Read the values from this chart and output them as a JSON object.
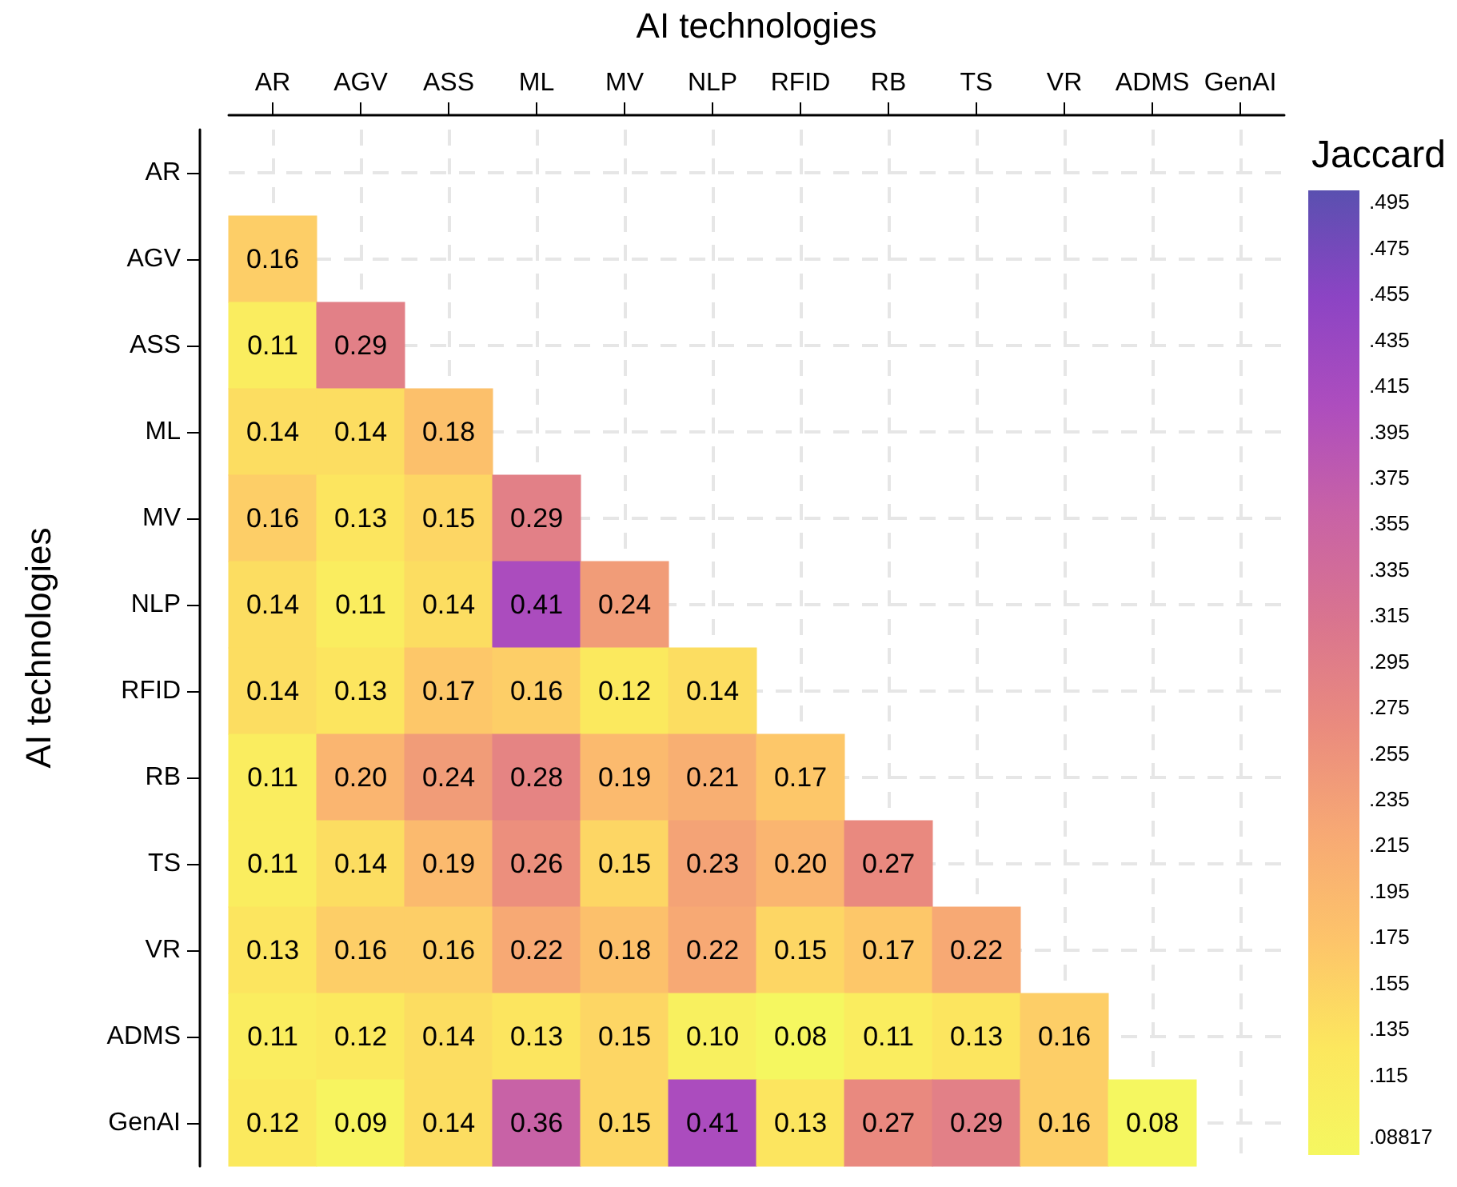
{
  "chart_data": {
    "type": "heatmap",
    "xlabel": "AI technologies",
    "ylabel": "AI technologies",
    "clabel": "Jaccard",
    "categories": [
      "AR",
      "AGV",
      "ASS",
      "ML",
      "MV",
      "NLP",
      "RFID",
      "RB",
      "TS",
      "VR",
      "ADMS",
      "GenAI"
    ],
    "y_categories": [
      "AR",
      "AGV",
      "ASS",
      "ML",
      "MV",
      "NLP",
      "RFID",
      "RB",
      "TS",
      "VR",
      "ADMS",
      "GenAI"
    ],
    "cells": [
      [
        null,
        null,
        null,
        null,
        null,
        null,
        null,
        null,
        null,
        null,
        null,
        null
      ],
      [
        0.16,
        null,
        null,
        null,
        null,
        null,
        null,
        null,
        null,
        null,
        null,
        null
      ],
      [
        0.11,
        0.29,
        null,
        null,
        null,
        null,
        null,
        null,
        null,
        null,
        null,
        null
      ],
      [
        0.14,
        0.14,
        0.18,
        null,
        null,
        null,
        null,
        null,
        null,
        null,
        null,
        null
      ],
      [
        0.16,
        0.13,
        0.15,
        0.29,
        null,
        null,
        null,
        null,
        null,
        null,
        null,
        null
      ],
      [
        0.14,
        0.11,
        0.14,
        0.41,
        0.24,
        null,
        null,
        null,
        null,
        null,
        null,
        null
      ],
      [
        0.14,
        0.13,
        0.17,
        0.16,
        0.12,
        0.14,
        null,
        null,
        null,
        null,
        null,
        null
      ],
      [
        0.11,
        0.2,
        0.24,
        0.28,
        0.19,
        0.21,
        0.17,
        null,
        null,
        null,
        null,
        null
      ],
      [
        0.11,
        0.14,
        0.19,
        0.26,
        0.15,
        0.23,
        0.2,
        0.27,
        null,
        null,
        null,
        null
      ],
      [
        0.13,
        0.16,
        0.16,
        0.22,
        0.18,
        0.22,
        0.15,
        0.17,
        0.22,
        null,
        null,
        null
      ],
      [
        0.11,
        0.12,
        0.14,
        0.13,
        0.15,
        0.1,
        0.08,
        0.11,
        0.13,
        0.16,
        null,
        null
      ],
      [
        0.12,
        0.09,
        0.14,
        0.36,
        0.15,
        0.41,
        0.13,
        0.27,
        0.29,
        0.16,
        0.08,
        null
      ]
    ],
    "cell_labels": [
      [
        null,
        null,
        null,
        null,
        null,
        null,
        null,
        null,
        null,
        null,
        null,
        null
      ],
      [
        "0.16",
        null,
        null,
        null,
        null,
        null,
        null,
        null,
        null,
        null,
        null,
        null
      ],
      [
        "0.11",
        "0.29",
        null,
        null,
        null,
        null,
        null,
        null,
        null,
        null,
        null,
        null
      ],
      [
        "0.14",
        "0.14",
        "0.18",
        null,
        null,
        null,
        null,
        null,
        null,
        null,
        null,
        null
      ],
      [
        "0.16",
        "0.13",
        "0.15",
        "0.29",
        null,
        null,
        null,
        null,
        null,
        null,
        null,
        null
      ],
      [
        "0.14",
        "0.11",
        "0.14",
        "0.41",
        "0.24",
        null,
        null,
        null,
        null,
        null,
        null,
        null
      ],
      [
        "0.14",
        "0.13",
        "0.17",
        "0.16",
        "0.12",
        "0.14",
        null,
        null,
        null,
        null,
        null,
        null
      ],
      [
        "0.11",
        "0.20",
        "0.24",
        "0.28",
        "0.19",
        "0.21",
        "0.17",
        null,
        null,
        null,
        null,
        null
      ],
      [
        "0.11",
        "0.14",
        "0.19",
        "0.26",
        "0.15",
        "0.23",
        "0.20",
        "0.27",
        null,
        null,
        null,
        null
      ],
      [
        "0.13",
        "0.16",
        "0.16",
        "0.22",
        "0.18",
        "0.22",
        "0.15",
        "0.17",
        "0.22",
        null,
        null,
        null
      ],
      [
        "0.11",
        "0.12",
        "0.14",
        "0.13",
        "0.15",
        "0.10",
        "0.08",
        "0.11",
        "0.13",
        "0.16",
        null,
        null
      ],
      [
        "0.12",
        "0.09",
        "0.14",
        "0.36",
        "0.15",
        "0.41",
        "0.13",
        "0.27",
        "0.29",
        "0.16",
        "0.08",
        null
      ]
    ],
    "clim": [
      0.08,
      0.5
    ],
    "cticks": [
      {
        "value": 0.495,
        "label": ".495"
      },
      {
        "value": 0.475,
        "label": ".475"
      },
      {
        "value": 0.455,
        "label": ".455"
      },
      {
        "value": 0.435,
        "label": ".435"
      },
      {
        "value": 0.415,
        "label": ".415"
      },
      {
        "value": 0.395,
        "label": ".395"
      },
      {
        "value": 0.375,
        "label": ".375"
      },
      {
        "value": 0.355,
        "label": ".355"
      },
      {
        "value": 0.335,
        "label": ".335"
      },
      {
        "value": 0.315,
        "label": ".315"
      },
      {
        "value": 0.295,
        "label": ".295"
      },
      {
        "value": 0.275,
        "label": ".275"
      },
      {
        "value": 0.255,
        "label": ".255"
      },
      {
        "value": 0.235,
        "label": ".235"
      },
      {
        "value": 0.215,
        "label": ".215"
      },
      {
        "value": 0.195,
        "label": ".195"
      },
      {
        "value": 0.175,
        "label": ".175"
      },
      {
        "value": 0.155,
        "label": ".155"
      },
      {
        "value": 0.135,
        "label": ".135"
      },
      {
        "value": 0.115,
        "label": ".115"
      },
      {
        "value": 0.08817,
        "label": ".08817"
      }
    ],
    "grid": true
  }
}
